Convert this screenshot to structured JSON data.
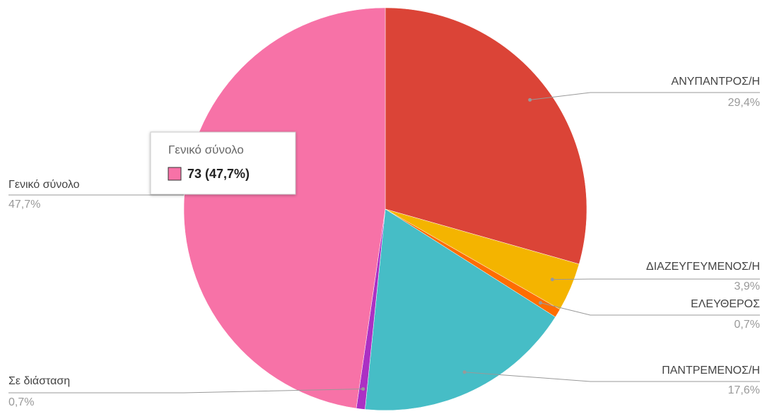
{
  "chart_data": {
    "type": "pie",
    "categories": [
      "ΑΝΥΠΑΝΤΡΟΣ/Η",
      "ΔΙΑΖΕΥΓΕΥΜΕΝΟΣ/Η",
      "ΕΛΕΥΘΕΡΟΣ",
      "ΠΑΝΤΡΕΜΕΝΟΣ/Η",
      "Σε διάσταση",
      "Γενικό σύνολο"
    ],
    "values": [
      29.4,
      3.9,
      0.7,
      17.6,
      0.7,
      47.7
    ],
    "value_labels": [
      "29,4%",
      "3,9%",
      "0,7%",
      "17,6%",
      "0,7%",
      "47,7%"
    ],
    "colors": [
      "#db4437",
      "#f4b400",
      "#ff6d01",
      "#46bdc6",
      "#ab30c4",
      "#f772a7"
    ],
    "tooltip": {
      "title": "Γενικό σύνολο",
      "text": "73 (47,7%)"
    }
  }
}
